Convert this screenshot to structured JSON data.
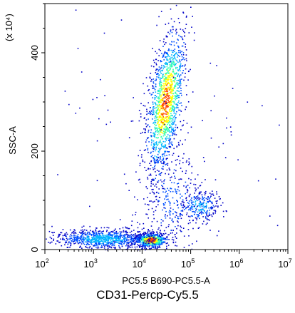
{
  "chart_data": {
    "type": "scatter",
    "subtype": "flow-cytometry density dot plot",
    "xlabel": "PC5.5 B690-PC5.5-A",
    "ylabel": "SSC-A",
    "y_multiplier_label": "(x 10⁴)",
    "caption": "CD31-Percp-Cy5.5",
    "x_scale": "log",
    "xlim": [
      100,
      10000000
    ],
    "x_ticks": [
      {
        "base": "10",
        "exp": "2",
        "value": 100
      },
      {
        "base": "10",
        "exp": "3",
        "value": 1000
      },
      {
        "base": "10",
        "exp": "4",
        "value": 10000
      },
      {
        "base": "10",
        "exp": "5",
        "value": 100000
      },
      {
        "base": "10",
        "exp": "6",
        "value": 1000000
      },
      {
        "base": "10",
        "exp": "7",
        "value": 10000000
      }
    ],
    "ylim": [
      0,
      500
    ],
    "y_ticks": [
      {
        "label": "0",
        "value": 0
      },
      {
        "label": "200",
        "value": 200
      },
      {
        "label": "400",
        "value": 400
      }
    ],
    "grid": false,
    "legend": "none",
    "colormap": [
      "#0000c8",
      "#0050ff",
      "#00b4ff",
      "#30ffb0",
      "#ffff00",
      "#ff4000"
    ],
    "clusters": [
      {
        "label": "",
        "x_center": 30000,
        "x_log_sd": 0.17,
        "y_center": 300,
        "y_sd": 75,
        "tilt_log_per_100": 0.14,
        "relative_count": 1400,
        "peak_density": 0.9
      },
      {
        "label": "",
        "x_center": 15000,
        "x_log_sd": 0.16,
        "y_center": 20,
        "y_sd": 7,
        "tilt_log_per_100": 0,
        "relative_count": 700,
        "peak_density": 1.0
      },
      {
        "label": "",
        "x_center": 1500,
        "x_log_sd": 0.5,
        "y_center": 22,
        "y_sd": 10,
        "tilt_log_per_100": 0,
        "relative_count": 900,
        "peak_density": 0.45
      },
      {
        "label": "",
        "x_center": 150000,
        "x_log_sd": 0.2,
        "y_center": 90,
        "y_sd": 18,
        "tilt_log_per_100": 0,
        "relative_count": 260,
        "peak_density": 0.4
      },
      {
        "label": "",
        "x_center": 40000,
        "x_log_sd": 0.35,
        "y_center": 100,
        "y_sd": 55,
        "tilt_log_per_100": 0,
        "relative_count": 300,
        "peak_density": 0.25
      },
      {
        "label": "",
        "x_center": 30000,
        "x_log_sd": 1.2,
        "y_center": 200,
        "y_sd": 140,
        "tilt_log_per_100": 0,
        "relative_count": 120,
        "peak_density": 0.05
      }
    ]
  }
}
